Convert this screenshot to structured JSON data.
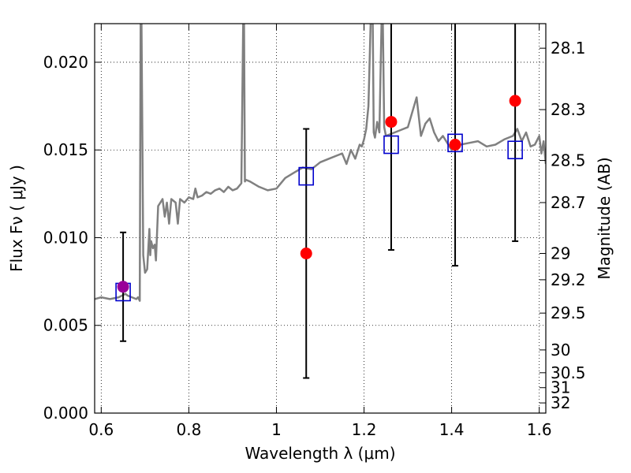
{
  "chart_data": {
    "type": "scatter",
    "title": "",
    "xlabel": "Wavelength  λ (μm)",
    "ylabel": "Flux  Fν  ( μJy )",
    "ylabel_right": "Magnitude (AB)",
    "xlim": [
      0.585,
      1.615
    ],
    "ylim": [
      0.0,
      0.0222
    ],
    "grid": true,
    "x_ticks": [
      0.6,
      0.8,
      1.0,
      1.2,
      1.4,
      1.6
    ],
    "x_tick_labels": [
      "0.6",
      "0.8",
      "1",
      "1.2",
      "1.4",
      "1.6"
    ],
    "y_ticks": [
      0.0,
      0.005,
      0.01,
      0.015,
      0.02
    ],
    "y_tick_labels": [
      "0.000",
      "0.005",
      "0.010",
      "0.015",
      "0.020"
    ],
    "right_ticks": [
      {
        "label": "28.1",
        "flux": 0.0208
      },
      {
        "label": "28.3",
        "flux": 0.0173
      },
      {
        "label": "28.5",
        "flux": 0.0144
      },
      {
        "label": "28.7",
        "flux": 0.012
      },
      {
        "label": "29",
        "flux": 0.0091
      },
      {
        "label": "29.2",
        "flux": 0.0076
      },
      {
        "label": "29.5",
        "flux": 0.0057
      },
      {
        "label": "30",
        "flux": 0.0036
      },
      {
        "label": "30.5",
        "flux": 0.0023
      },
      {
        "label": "31",
        "flux": 0.00145
      },
      {
        "label": "32",
        "flux": 0.00058
      }
    ],
    "series": [
      {
        "role": "model spectrum",
        "color": "#808080",
        "x": [
          0.585,
          0.6,
          0.62,
          0.64,
          0.655,
          0.66,
          0.67,
          0.68,
          0.684,
          0.688,
          0.69,
          0.692,
          0.696,
          0.7,
          0.705,
          0.71,
          0.712,
          0.714,
          0.718,
          0.722,
          0.725,
          0.73,
          0.735,
          0.74,
          0.745,
          0.75,
          0.755,
          0.76,
          0.77,
          0.775,
          0.78,
          0.79,
          0.8,
          0.81,
          0.815,
          0.82,
          0.83,
          0.84,
          0.85,
          0.86,
          0.87,
          0.88,
          0.89,
          0.9,
          0.91,
          0.92,
          0.924,
          0.926,
          0.928,
          0.93,
          0.94,
          0.96,
          0.98,
          1.0,
          1.02,
          1.04,
          1.06,
          1.08,
          1.1,
          1.12,
          1.14,
          1.15,
          1.16,
          1.17,
          1.18,
          1.19,
          1.195,
          1.2,
          1.205,
          1.21,
          1.215,
          1.22,
          1.222,
          1.225,
          1.23,
          1.235,
          1.24,
          1.243,
          1.246,
          1.25,
          1.27,
          1.3,
          1.32,
          1.33,
          1.34,
          1.35,
          1.36,
          1.37,
          1.38,
          1.4,
          1.42,
          1.44,
          1.46,
          1.48,
          1.5,
          1.52,
          1.54,
          1.55,
          1.56,
          1.57,
          1.58,
          1.59,
          1.6,
          1.605,
          1.61,
          1.615
        ],
        "y": [
          0.0065,
          0.0066,
          0.0065,
          0.0066,
          0.0068,
          0.0067,
          0.0066,
          0.0065,
          0.0066,
          0.0064,
          0.0222,
          0.0222,
          0.009,
          0.008,
          0.0082,
          0.0105,
          0.009,
          0.0098,
          0.0094,
          0.0096,
          0.0087,
          0.0118,
          0.012,
          0.0122,
          0.0112,
          0.012,
          0.0108,
          0.0122,
          0.012,
          0.0108,
          0.0122,
          0.012,
          0.0123,
          0.0122,
          0.0128,
          0.0123,
          0.0124,
          0.0126,
          0.0125,
          0.0127,
          0.0128,
          0.0126,
          0.0129,
          0.0127,
          0.0128,
          0.0131,
          0.0222,
          0.0222,
          0.0132,
          0.0133,
          0.0132,
          0.0129,
          0.0127,
          0.0128,
          0.0134,
          0.0137,
          0.014,
          0.0139,
          0.0143,
          0.0145,
          0.0147,
          0.0148,
          0.0142,
          0.015,
          0.0145,
          0.0153,
          0.0152,
          0.0156,
          0.0162,
          0.0175,
          0.0222,
          0.0222,
          0.016,
          0.0157,
          0.0166,
          0.016,
          0.0222,
          0.0222,
          0.0163,
          0.0158,
          0.016,
          0.0163,
          0.018,
          0.0158,
          0.0165,
          0.0168,
          0.016,
          0.0155,
          0.0158,
          0.015,
          0.0153,
          0.0154,
          0.0155,
          0.0152,
          0.0153,
          0.0156,
          0.0158,
          0.0162,
          0.0155,
          0.016,
          0.0152,
          0.0153,
          0.0158,
          0.0148,
          0.0155,
          0.0142
        ]
      },
      {
        "role": "model photometry",
        "marker": "open-square",
        "color": "#0000cc",
        "x": [
          0.65,
          1.068,
          1.262,
          1.408,
          1.545
        ],
        "y": [
          0.0069,
          0.0135,
          0.0153,
          0.0154,
          0.015
        ]
      },
      {
        "role": "measured flux",
        "marker": "filled-circle",
        "color": "#ff0000",
        "x": [
          0.65,
          1.068,
          1.262,
          1.408,
          1.545
        ],
        "y": [
          0.0072,
          0.0091,
          0.0166,
          0.0153,
          0.0178
        ],
        "err_low": [
          0.0041,
          0.002,
          0.0093,
          0.0084,
          0.0098
        ],
        "err_high": [
          0.0103,
          0.0162,
          0.0222,
          0.0222,
          0.0222
        ],
        "point_colors": [
          "#990099",
          "#ff0000",
          "#ff0000",
          "#ff0000",
          "#ff0000"
        ]
      }
    ]
  }
}
